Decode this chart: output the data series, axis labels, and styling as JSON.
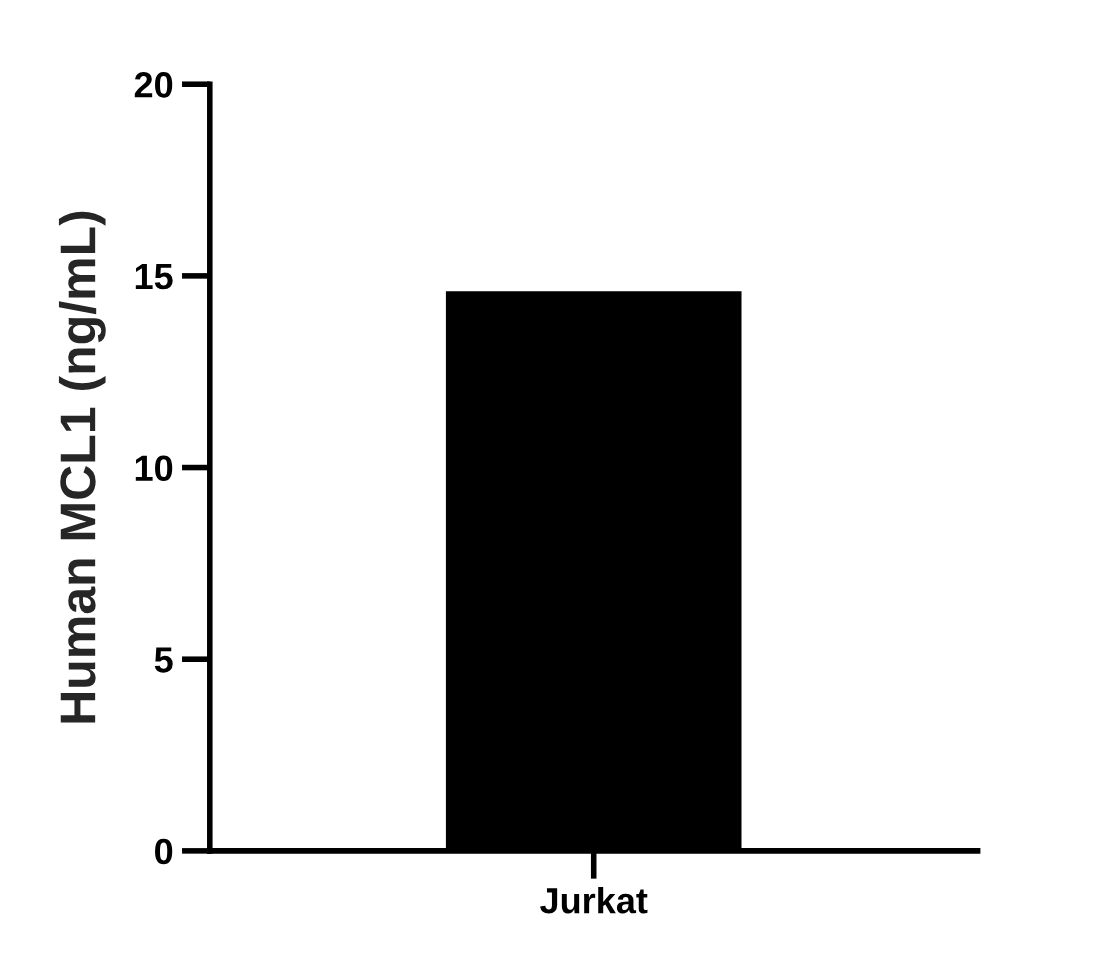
{
  "chart_data": {
    "type": "bar",
    "ylabel": "Human MCL1 (ng/mL)",
    "categories": [
      "Jurkat"
    ],
    "values": [
      14.6
    ],
    "color": "#000000",
    "ylim": [
      0,
      20
    ],
    "yticks": [
      0,
      5,
      10,
      15,
      20
    ],
    "grid": false
  }
}
